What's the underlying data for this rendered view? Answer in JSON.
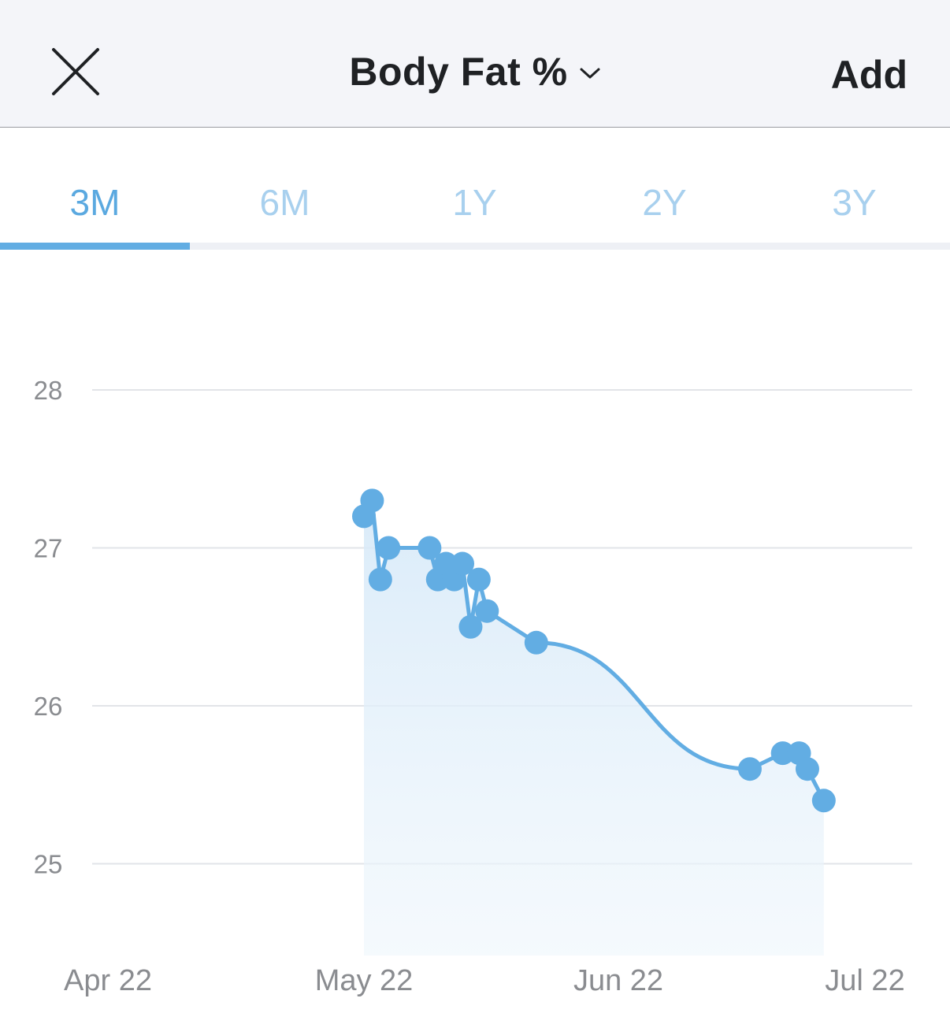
{
  "header": {
    "title": "Body Fat %",
    "add_label": "Add",
    "close_icon": "close-icon",
    "dropdown_icon": "chevron-down-icon"
  },
  "tabs": [
    {
      "label": "3M",
      "active": true
    },
    {
      "label": "6M",
      "active": false
    },
    {
      "label": "1Y",
      "active": false
    },
    {
      "label": "2Y",
      "active": false
    },
    {
      "label": "3Y",
      "active": false
    }
  ],
  "colors": {
    "accent": "#62ade3",
    "inactive_tab": "#a8d0ee",
    "grid": "#e2e4e8",
    "axis_text": "#8a8c90"
  },
  "chart_data": {
    "type": "line",
    "ylabel": "",
    "xlabel": "",
    "y_ticks": [
      28,
      27,
      26,
      25
    ],
    "ylim": [
      24.4,
      28
    ],
    "x_ticks": [
      {
        "label": "Apr 22",
        "date": "2022-04-22"
      },
      {
        "label": "May 22",
        "date": "2022-05-22"
      },
      {
        "label": "Jun 22",
        "date": "2022-06-22"
      },
      {
        "label": "Jul 22",
        "date": "2022-07-22"
      }
    ],
    "xlim": [
      "2022-04-22",
      "2022-07-22"
    ],
    "area_fill": true,
    "smooth_after": "2022-06-07",
    "series": [
      {
        "points": [
          {
            "x": "2022-05-22",
            "y": 27.2
          },
          {
            "x": "2022-05-23",
            "y": 27.3
          },
          {
            "x": "2022-05-24",
            "y": 26.8
          },
          {
            "x": "2022-05-25",
            "y": 27.0
          },
          {
            "x": "2022-05-30",
            "y": 27.0
          },
          {
            "x": "2022-05-31",
            "y": 26.8
          },
          {
            "x": "2022-06-01",
            "y": 26.9
          },
          {
            "x": "2022-06-02",
            "y": 26.8
          },
          {
            "x": "2022-06-03",
            "y": 26.9
          },
          {
            "x": "2022-06-04",
            "y": 26.5
          },
          {
            "x": "2022-06-05",
            "y": 26.8
          },
          {
            "x": "2022-06-06",
            "y": 26.6
          },
          {
            "x": "2022-06-12",
            "y": 26.4
          },
          {
            "x": "2022-07-08",
            "y": 25.6
          },
          {
            "x": "2022-07-12",
            "y": 25.7
          },
          {
            "x": "2022-07-14",
            "y": 25.7
          },
          {
            "x": "2022-07-15",
            "y": 25.6
          },
          {
            "x": "2022-07-17",
            "y": 25.4
          }
        ]
      }
    ]
  }
}
